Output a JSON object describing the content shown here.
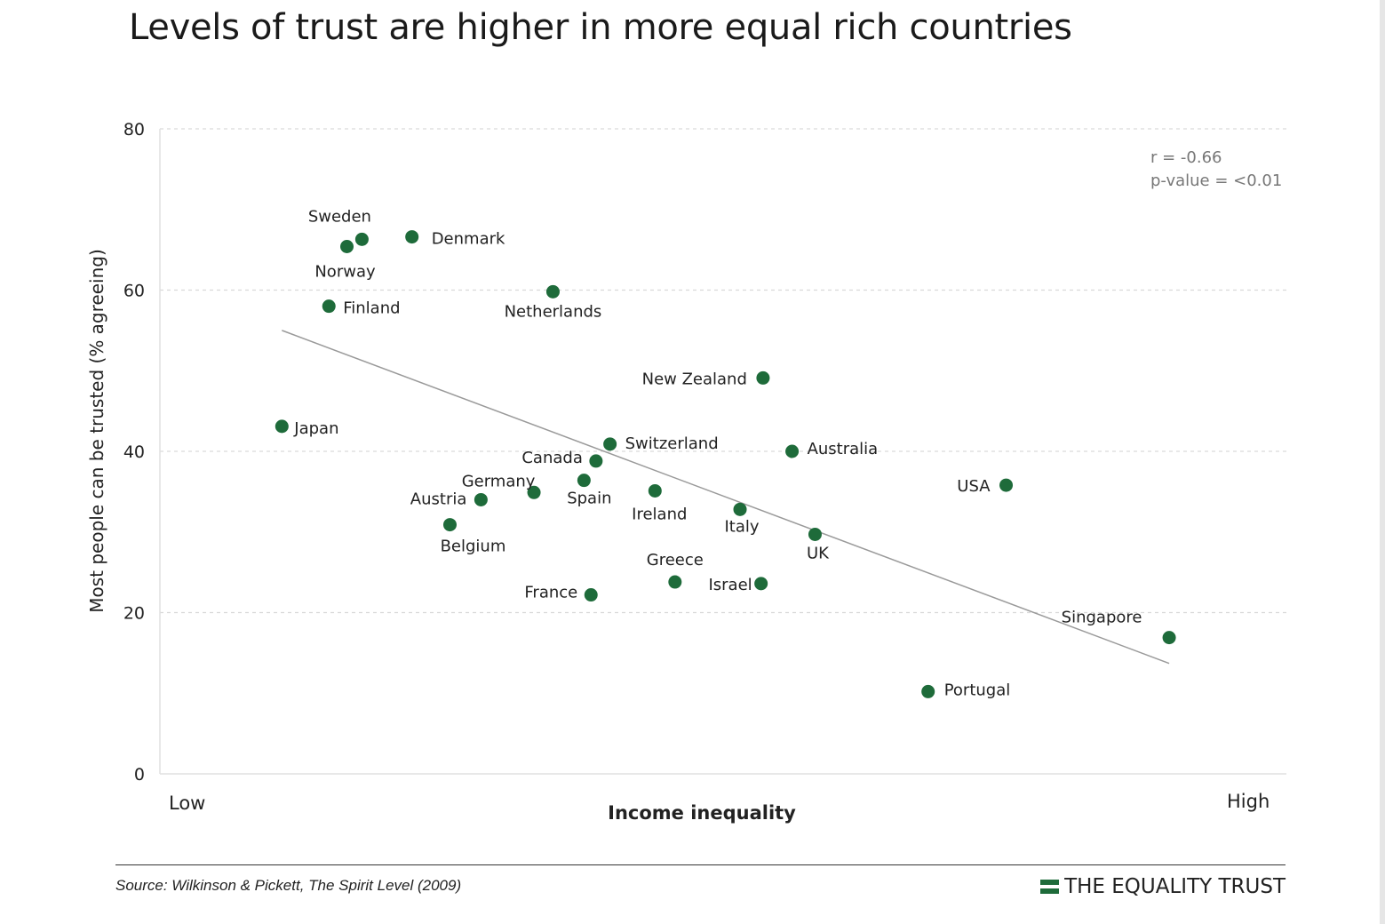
{
  "title": "Levels of trust are higher in more equal rich countries",
  "source": "Source: Wilkinson & Pickett, The Spirit Level (2009)",
  "brand": "THE EQUALITY TRUST",
  "colors": {
    "point": "#1e6b3a",
    "trend": "#9a9a9a",
    "grid": "#d9d9d9",
    "axis": "#e0e0e0"
  },
  "chart_data": {
    "type": "scatter",
    "title": "Levels of trust are higher in more equal rich countries",
    "xlabel": "Income inequality",
    "ylabel": "Most people can be trusted (% agreeing)",
    "x_tick_labels": {
      "low": "Low",
      "high": "High"
    },
    "xlim": [
      0,
      100
    ],
    "ylim": [
      0,
      80
    ],
    "yticks": [
      0,
      20,
      40,
      60,
      80
    ],
    "grid": "horizontal dashed",
    "annotation": [
      "r = -0.66",
      "p-value = <0.01"
    ],
    "trendline": {
      "x": [
        5.8,
        94.5
      ],
      "y": [
        55.0,
        13.7
      ]
    },
    "points": [
      {
        "label": "Sweden",
        "x": 13.8,
        "y": 66.3
      },
      {
        "label": "Norway",
        "x": 12.3,
        "y": 65.4
      },
      {
        "label": "Denmark",
        "x": 18.8,
        "y": 66.6
      },
      {
        "label": "Finland",
        "x": 10.5,
        "y": 58.0
      },
      {
        "label": "Netherlands",
        "x": 32.9,
        "y": 59.8
      },
      {
        "label": "Japan",
        "x": 5.8,
        "y": 43.1
      },
      {
        "label": "New Zealand",
        "x": 53.9,
        "y": 49.1
      },
      {
        "label": "Switzerland",
        "x": 38.6,
        "y": 40.9
      },
      {
        "label": "Canada",
        "x": 37.2,
        "y": 38.8
      },
      {
        "label": "Australia",
        "x": 56.8,
        "y": 40.0
      },
      {
        "label": "USA",
        "x": 78.2,
        "y": 35.8
      },
      {
        "label": "Germany",
        "x": 31.0,
        "y": 34.9
      },
      {
        "label": "Spain",
        "x": 36.0,
        "y": 36.4
      },
      {
        "label": "Austria",
        "x": 25.7,
        "y": 34.0
      },
      {
        "label": "Ireland",
        "x": 43.1,
        "y": 35.1
      },
      {
        "label": "Belgium",
        "x": 22.6,
        "y": 30.9
      },
      {
        "label": "Italy",
        "x": 51.6,
        "y": 32.8
      },
      {
        "label": "UK",
        "x": 59.1,
        "y": 29.7
      },
      {
        "label": "Greece",
        "x": 45.1,
        "y": 23.8
      },
      {
        "label": "France",
        "x": 36.7,
        "y": 22.2
      },
      {
        "label": "Israel",
        "x": 53.7,
        "y": 23.6
      },
      {
        "label": "Singapore",
        "x": 94.5,
        "y": 16.9
      },
      {
        "label": "Portugal",
        "x": 70.4,
        "y": 10.2
      }
    ]
  }
}
